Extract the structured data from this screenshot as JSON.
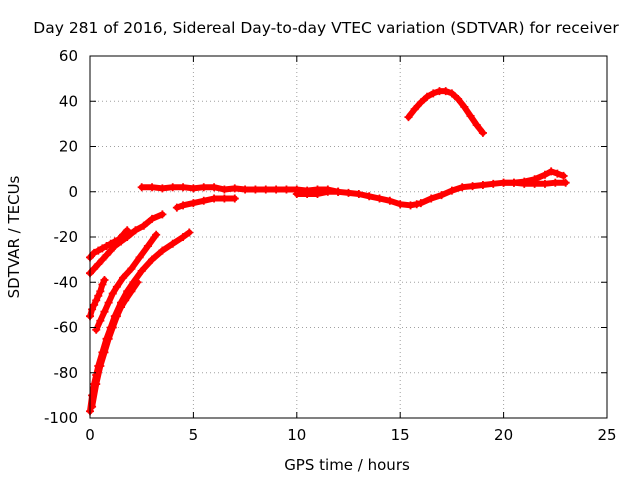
{
  "chart_data": {
    "type": "scatter",
    "title": "Day 281 of 2016, Sidereal Day-to-day VTEC variation (SDTVAR) for receiver",
    "xlabel": "GPS time / hours",
    "ylabel": "SDTVAR / TECUs",
    "xlim": [
      0,
      25
    ],
    "ylim": [
      -100,
      60
    ],
    "xticks": [
      0,
      5,
      10,
      15,
      20,
      25
    ],
    "yticks": [
      -100,
      -80,
      -60,
      -40,
      -20,
      0,
      20,
      40,
      60
    ],
    "grid": true,
    "legend": "none",
    "colors": {
      "series": "#ff0000",
      "grid": "#a0a0a0",
      "axis": "#000000"
    },
    "series": [
      {
        "x": [
          0.0,
          0.2,
          0.4,
          0.6,
          0.8,
          1.0,
          1.2,
          1.4,
          1.6,
          1.8
        ],
        "y": [
          -29,
          -27,
          -26,
          -25,
          -24,
          -23,
          -22,
          -21,
          -19,
          -17
        ]
      },
      {
        "x": [
          0.0,
          0.1,
          0.2,
          0.3,
          0.4,
          0.5,
          0.6,
          0.7
        ],
        "y": [
          -55,
          -52,
          -50,
          -48,
          -46,
          -44,
          -41,
          -39
        ]
      },
      {
        "x": [
          0.0,
          0.2,
          0.4,
          0.6,
          0.8,
          1.0,
          1.2,
          1.5,
          1.8,
          2.2,
          2.6,
          3.0,
          3.5
        ],
        "y": [
          -36,
          -34,
          -32,
          -30,
          -28,
          -26,
          -24,
          -22,
          -20,
          -17,
          -15,
          -12,
          -10
        ]
      },
      {
        "x": [
          0.3,
          0.5,
          0.7,
          0.9,
          1.1,
          1.3,
          1.6,
          2.0,
          2.4,
          2.8,
          3.2
        ],
        "y": [
          -61,
          -57,
          -53,
          -49,
          -45,
          -42,
          -38,
          -34,
          -29,
          -24,
          -19
        ]
      },
      {
        "x": [
          0.0,
          0.1,
          0.2,
          0.3,
          0.4,
          0.6,
          0.8,
          1.0,
          1.2,
          1.5,
          1.8,
          2.1,
          2.5,
          3.0,
          3.5,
          4.0,
          4.5,
          4.8
        ],
        "y": [
          -97,
          -90,
          -85,
          -81,
          -77,
          -71,
          -65,
          -60,
          -55,
          -49,
          -44,
          -40,
          -35,
          -30,
          -26,
          -23,
          -20,
          -18
        ]
      },
      {
        "x": [
          0.1,
          0.3,
          0.5,
          0.7,
          0.9,
          1.1,
          1.3,
          1.5,
          1.7,
          2.0,
          2.3
        ],
        "y": [
          -95,
          -85,
          -77,
          -71,
          -65,
          -60,
          -55,
          -51,
          -48,
          -44,
          -40
        ]
      },
      {
        "x": [
          4.2,
          4.5,
          5.0,
          5.5,
          6.0,
          6.5,
          7.0
        ],
        "y": [
          -7,
          -6,
          -5,
          -4,
          -3,
          -3,
          -3
        ]
      },
      {
        "x": [
          2.5,
          3.0,
          3.5,
          4.0,
          4.5,
          5.0,
          5.5,
          6.0,
          6.5,
          7.0,
          7.5,
          8.0,
          8.5,
          9.0,
          9.5,
          10.0,
          10.5,
          11.0,
          11.5,
          12.0
        ],
        "y": [
          2,
          2,
          1.5,
          2,
          2,
          1.5,
          2,
          2,
          1,
          1.5,
          1,
          1,
          1,
          1,
          1,
          1,
          0.5,
          1,
          1,
          0
        ]
      },
      {
        "x": [
          10.0,
          10.5,
          11.0,
          11.5,
          12.0
        ],
        "y": [
          -1,
          -1,
          -1,
          0,
          0
        ]
      },
      {
        "x": [
          12.0,
          12.5,
          13.0,
          13.5,
          14.0,
          14.5,
          15.0,
          15.5,
          15.8,
          16.0,
          16.5,
          17.0,
          17.5,
          18.0,
          18.5,
          19.0,
          19.5,
          20.0,
          20.5,
          21.0,
          21.5,
          22.0,
          22.5,
          23.0
        ],
        "y": [
          0,
          -0.5,
          -1,
          -2,
          -3,
          -4,
          -5.5,
          -6,
          -5.5,
          -5,
          -3,
          -1.5,
          0.5,
          2,
          2.5,
          3,
          3.5,
          4,
          4,
          3.5,
          3.5,
          3.5,
          4,
          4
        ]
      },
      {
        "x": [
          20.0,
          20.5,
          21.0,
          21.5,
          22.0,
          22.3,
          22.6,
          22.9
        ],
        "y": [
          4,
          4,
          4.5,
          5.5,
          7.5,
          9,
          8,
          7
        ]
      },
      {
        "x": [
          15.4,
          15.7,
          16.0,
          16.3,
          16.6,
          16.9,
          17.2,
          17.5,
          17.8,
          18.1,
          18.4,
          18.7,
          19.0
        ],
        "y": [
          33,
          36.5,
          39.5,
          42,
          43.5,
          44.5,
          44.5,
          43.5,
          41,
          37.5,
          33.5,
          29.5,
          26
        ]
      }
    ]
  }
}
